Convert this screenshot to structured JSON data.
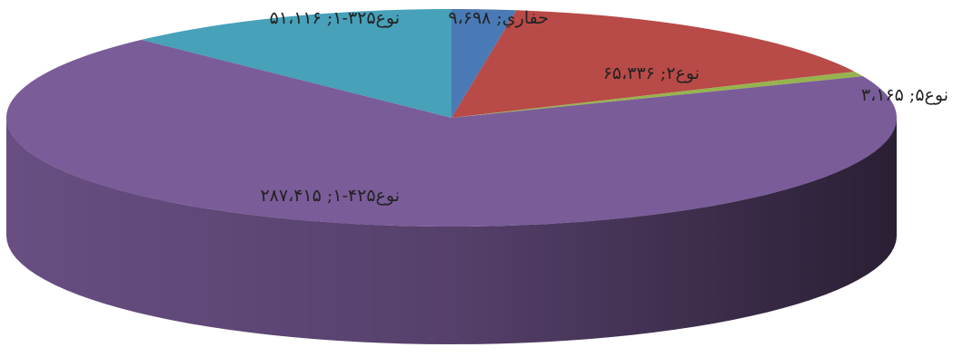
{
  "chart_data": {
    "type": "pie",
    "style": "3d",
    "title": "",
    "slices": [
      {
        "name": "حفاري",
        "value_label": "۹،۶۹۸",
        "value": 9698,
        "color": "#4a7ab6",
        "label_placement": "outside-top"
      },
      {
        "name": "نوع۲",
        "value_label": "۶۵،۳۳۶",
        "value": 65336,
        "color": "#b84a47",
        "label_placement": "inside"
      },
      {
        "name": "نوع۵",
        "value_label": "۳،۱۶۵",
        "value": 3165,
        "color": "#97b34f",
        "label_placement": "outside-right"
      },
      {
        "name": "نوع۴۲۵-۱",
        "value_label": "۲۸۷،۴۱۵",
        "value": 287415,
        "color": "#7a5c99",
        "label_placement": "inside"
      },
      {
        "name": "نوع۳۲۵-۱",
        "value_label": "۵۱،۱۱۶",
        "value": 51116,
        "color": "#46a1b9",
        "label_placement": "outside-top"
      }
    ],
    "separator": ";",
    "legend": "none"
  }
}
